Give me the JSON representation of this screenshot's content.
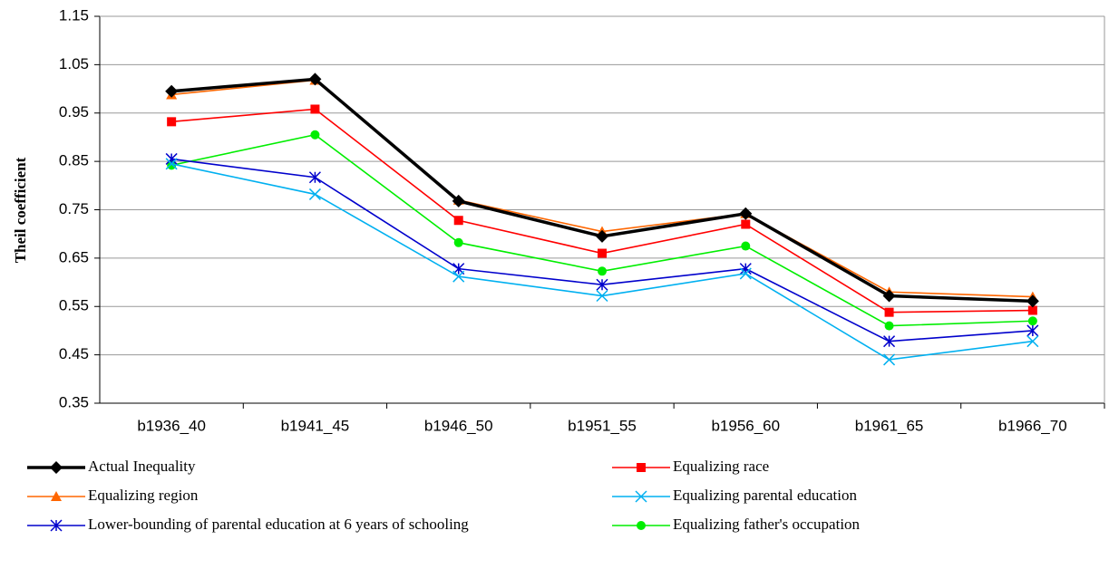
{
  "chart_data": {
    "type": "line",
    "y_label": "Theil coefficient",
    "categories": [
      "b1936_40",
      "b1941_45",
      "b1946_50",
      "b1951_55",
      "b1956_60",
      "b1961_65",
      "b1966_70"
    ],
    "ylim": [
      0.35,
      1.15
    ],
    "yticks": [
      0.35,
      0.45,
      0.55,
      0.65,
      0.75,
      0.85,
      0.95,
      1.05,
      1.15
    ],
    "grid": true,
    "legend": "bottom",
    "series": [
      {
        "name": "Actual Inequality",
        "color": "#000000",
        "marker": "diamond",
        "values": [
          0.995,
          1.02,
          0.768,
          0.695,
          0.742,
          0.572,
          0.561
        ]
      },
      {
        "name": "Equalizing  race",
        "color": "#ff0000",
        "marker": "square",
        "values": [
          0.932,
          0.958,
          0.728,
          0.66,
          0.72,
          0.538,
          0.542
        ]
      },
      {
        "name": "Equalizing  region",
        "color": "#ff6600",
        "marker": "triangle",
        "values": [
          0.988,
          1.018,
          0.77,
          0.705,
          0.742,
          0.58,
          0.57
        ]
      },
      {
        "name": "Equalizing  parental education",
        "color": "#00b0f0",
        "marker": "x",
        "values": [
          0.845,
          0.782,
          0.612,
          0.572,
          0.618,
          0.44,
          0.478
        ]
      },
      {
        "name": "Lower-bounding of parental education at 6 years of schooling",
        "color": "#0000cc",
        "marker": "asterisk",
        "values": [
          0.855,
          0.817,
          0.628,
          0.595,
          0.628,
          0.478,
          0.5
        ]
      },
      {
        "name": "Equalizing  father's occupation",
        "color": "#00ee00",
        "marker": "circle",
        "values": [
          0.842,
          0.905,
          0.682,
          0.623,
          0.675,
          0.51,
          0.52
        ]
      }
    ]
  }
}
